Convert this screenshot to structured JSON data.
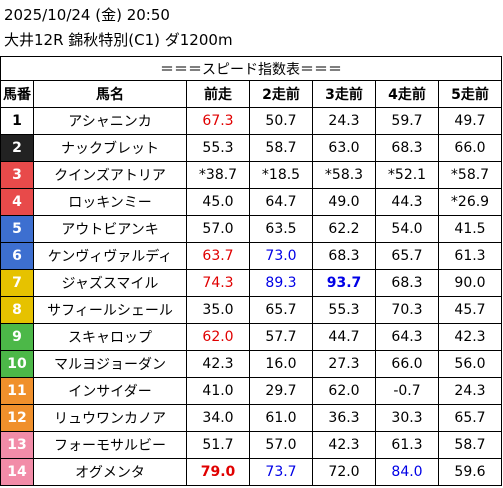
{
  "header": {
    "line1": "2025/10/24 (金) 20:50",
    "line2": "大井12R 錦秋特別(C1) ダ1200m"
  },
  "table": {
    "title": "＝＝＝スピード指数表＝＝＝",
    "columns": [
      "馬番",
      "馬名",
      "前走",
      "2走前",
      "3走前",
      "4走前",
      "5走前"
    ],
    "rows": [
      {
        "no": "1",
        "name": "アシャニンカ",
        "bg": "#ffffff",
        "fg": "#000000",
        "bar": false,
        "values": [
          "67.3",
          "50.7",
          "24.3",
          "59.7",
          "49.7"
        ],
        "styles": [
          "red",
          "",
          "",
          "",
          ""
        ]
      },
      {
        "no": "2",
        "name": "ナックブレット",
        "bg": "#222222",
        "fg": "#ffffff",
        "bar": false,
        "values": [
          "55.3",
          "58.7",
          "63.0",
          "68.3",
          "66.0"
        ],
        "styles": [
          "",
          "",
          "",
          "",
          ""
        ]
      },
      {
        "no": "3",
        "name": "クインズアトリア",
        "bg": "#e84a4a",
        "fg": "#ffffff",
        "bar": true,
        "values": [
          "*38.7",
          "*18.5",
          "*58.3",
          "*52.1",
          "*58.7"
        ],
        "styles": [
          "",
          "",
          "",
          "",
          ""
        ]
      },
      {
        "no": "4",
        "name": "ロッキンミー",
        "bg": "#e84a4a",
        "fg": "#ffffff",
        "bar": false,
        "values": [
          "45.0",
          "64.7",
          "49.0",
          "44.3",
          "*26.9"
        ],
        "styles": [
          "",
          "",
          "",
          "",
          ""
        ]
      },
      {
        "no": "5",
        "name": "アウトビアンキ",
        "bg": "#3d6fd0",
        "fg": "#ffffff",
        "bar": true,
        "values": [
          "57.0",
          "63.5",
          "62.2",
          "54.0",
          "41.5"
        ],
        "styles": [
          "",
          "",
          "",
          "",
          ""
        ]
      },
      {
        "no": "6",
        "name": "ケンヴィヴァルディ",
        "bg": "#3d6fd0",
        "fg": "#ffffff",
        "bar": true,
        "values": [
          "63.7",
          "73.0",
          "68.3",
          "65.7",
          "61.3"
        ],
        "styles": [
          "red",
          "blue",
          "",
          "",
          ""
        ]
      },
      {
        "no": "7",
        "name": "ジャズスマイル",
        "bg": "#e6c200",
        "fg": "#ffffff",
        "bar": false,
        "values": [
          "74.3",
          "89.3",
          "93.7",
          "68.3",
          "90.0"
        ],
        "styles": [
          "red",
          "blue",
          "bold-blue",
          "",
          ""
        ]
      },
      {
        "no": "8",
        "name": "サフィールシェール",
        "bg": "#e6c200",
        "fg": "#ffffff",
        "bar": false,
        "values": [
          "35.0",
          "65.7",
          "55.3",
          "70.3",
          "45.7"
        ],
        "styles": [
          "",
          "",
          "",
          "",
          ""
        ]
      },
      {
        "no": "9",
        "name": "スキャロップ",
        "bg": "#4cb848",
        "fg": "#ffffff",
        "bar": false,
        "values": [
          "62.0",
          "57.7",
          "44.7",
          "64.3",
          "42.3"
        ],
        "styles": [
          "red",
          "",
          "",
          "",
          ""
        ]
      },
      {
        "no": "10",
        "name": "マルヨジョーダン",
        "bg": "#4cb848",
        "fg": "#ffffff",
        "bar": false,
        "values": [
          "42.3",
          "16.0",
          "27.3",
          "66.0",
          "56.0"
        ],
        "styles": [
          "",
          "",
          "",
          "",
          ""
        ]
      },
      {
        "no": "11",
        "name": "インサイダー",
        "bg": "#f0902c",
        "fg": "#ffffff",
        "bar": false,
        "values": [
          "41.0",
          "29.7",
          "62.0",
          "-0.7",
          "24.3"
        ],
        "styles": [
          "",
          "",
          "",
          "",
          ""
        ]
      },
      {
        "no": "12",
        "name": "リュウワンカノア",
        "bg": "#f0902c",
        "fg": "#ffffff",
        "bar": false,
        "values": [
          "34.0",
          "61.0",
          "36.3",
          "30.3",
          "65.7"
        ],
        "styles": [
          "",
          "",
          "",
          "",
          ""
        ]
      },
      {
        "no": "13",
        "name": "フォーモサルビー",
        "bg": "#f28ca8",
        "fg": "#ffffff",
        "bar": false,
        "values": [
          "51.7",
          "57.0",
          "42.3",
          "61.3",
          "58.7"
        ],
        "styles": [
          "",
          "",
          "",
          "",
          ""
        ]
      },
      {
        "no": "14",
        "name": "オグメンタ",
        "bg": "#f28ca8",
        "fg": "#ffffff",
        "bar": false,
        "values": [
          "79.0",
          "73.7",
          "72.0",
          "84.0",
          "59.6"
        ],
        "styles": [
          "bold-red",
          "blue",
          "",
          "blue",
          ""
        ]
      }
    ]
  }
}
